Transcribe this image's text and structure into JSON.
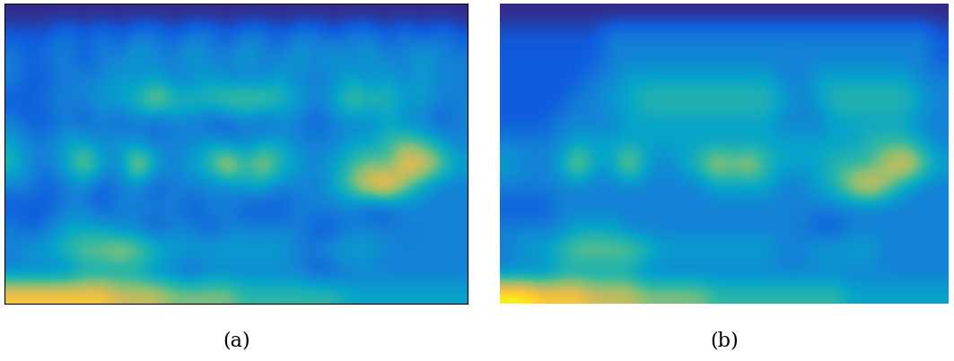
{
  "chart_data": [
    {
      "type": "heatmap",
      "xlabel": "(a)",
      "tick_labels": false,
      "cells": [
        [
          1,
          1,
          1,
          1,
          1,
          1,
          1,
          1,
          1,
          1,
          1,
          1,
          1,
          1,
          1,
          1,
          1,
          1,
          1,
          1,
          1,
          1,
          1,
          1,
          1,
          1
        ],
        [
          2,
          2,
          2,
          3,
          2,
          3,
          2,
          3,
          3,
          2,
          3,
          3,
          2,
          3,
          3,
          2,
          3,
          3,
          2,
          3,
          3,
          2,
          3,
          2,
          3,
          2
        ],
        [
          3,
          2,
          3,
          3,
          2,
          3,
          3,
          4,
          3,
          3,
          4,
          3,
          3,
          4,
          3,
          3,
          4,
          3,
          4,
          3,
          4,
          3,
          3,
          4,
          3,
          3
        ],
        [
          3,
          2,
          2,
          3,
          3,
          3,
          4,
          3,
          4,
          3,
          3,
          4,
          3,
          3,
          3,
          4,
          3,
          3,
          3,
          4,
          3,
          4,
          3,
          4,
          3,
          3
        ],
        [
          2,
          2,
          3,
          3,
          3,
          4,
          4,
          5,
          7,
          5,
          5,
          5,
          6,
          6,
          6,
          5,
          4,
          3,
          4,
          6,
          5,
          5,
          4,
          4,
          3,
          3
        ],
        [
          3,
          2,
          2,
          3,
          2,
          3,
          2,
          3,
          2,
          3,
          3,
          2,
          2,
          3,
          2,
          3,
          3,
          2,
          3,
          3,
          3,
          4,
          3,
          3,
          2,
          3
        ],
        [
          4,
          3,
          3,
          4,
          4,
          3,
          4,
          3,
          3,
          3,
          3,
          4,
          3,
          3,
          4,
          4,
          3,
          3,
          3,
          4,
          4,
          5,
          6,
          5,
          4,
          3
        ],
        [
          5,
          3,
          3,
          4,
          7,
          4,
          3,
          8,
          4,
          3,
          4,
          5,
          8,
          5,
          7,
          5,
          4,
          3,
          4,
          5,
          6,
          5,
          8,
          8,
          6,
          4
        ],
        [
          3,
          3,
          2,
          3,
          3,
          2,
          3,
          3,
          2,
          3,
          3,
          3,
          3,
          4,
          4,
          3,
          3,
          3,
          4,
          6,
          8,
          9,
          6,
          4,
          3,
          3
        ],
        [
          2,
          2,
          2,
          3,
          3,
          2,
          3,
          3,
          3,
          3,
          2,
          3,
          3,
          2,
          2,
          2,
          3,
          3,
          3,
          3,
          2,
          2,
          3,
          3,
          3,
          3
        ],
        [
          3,
          2,
          3,
          4,
          4,
          4,
          3,
          3,
          2,
          3,
          3,
          2,
          3,
          3,
          3,
          3,
          3,
          2,
          2,
          3,
          3,
          3,
          3,
          3,
          3,
          3
        ],
        [
          3,
          4,
          4,
          5,
          6,
          6,
          7,
          6,
          5,
          4,
          4,
          4,
          4,
          4,
          4,
          4,
          3,
          3,
          4,
          4,
          4,
          3,
          3,
          3,
          3,
          3
        ],
        [
          3,
          3,
          3,
          3,
          4,
          4,
          4,
          4,
          3,
          3,
          2,
          3,
          3,
          3,
          3,
          3,
          3,
          2,
          2,
          3,
          3,
          3,
          3,
          3,
          3,
          3
        ],
        [
          8,
          8,
          8,
          8,
          8,
          8,
          7,
          7,
          7,
          6,
          6,
          6,
          6,
          5,
          5,
          5,
          5,
          5,
          5,
          4,
          4,
          4,
          4,
          4,
          4,
          4
        ]
      ]
    },
    {
      "type": "heatmap",
      "xlabel": "(b)",
      "tick_labels": false,
      "cells": [
        [
          1,
          1,
          1,
          1,
          1,
          1,
          1,
          1,
          1,
          1,
          1,
          1,
          1,
          1,
          1,
          1,
          1,
          1,
          1,
          1,
          1,
          1,
          1,
          1,
          1,
          1
        ],
        [
          2,
          2,
          2,
          2,
          2,
          2,
          3,
          3,
          3,
          3,
          3,
          3,
          3,
          3,
          3,
          3,
          3,
          3,
          3,
          3,
          3,
          3,
          3,
          3,
          3,
          2
        ],
        [
          2,
          2,
          2,
          2,
          2,
          2,
          3,
          3,
          3,
          3,
          3,
          3,
          3,
          3,
          3,
          3,
          3,
          3,
          3,
          3,
          3,
          3,
          3,
          3,
          3,
          2
        ],
        [
          2,
          2,
          2,
          2,
          2,
          3,
          3,
          4,
          4,
          4,
          4,
          4,
          4,
          4,
          4,
          4,
          3,
          3,
          4,
          4,
          4,
          4,
          4,
          4,
          3,
          3
        ],
        [
          2,
          2,
          2,
          2,
          3,
          3,
          4,
          4,
          5,
          5,
          5,
          5,
          5,
          5,
          5,
          5,
          4,
          3,
          4,
          5,
          5,
          5,
          5,
          5,
          4,
          3
        ],
        [
          2,
          2,
          2,
          3,
          3,
          3,
          3,
          4,
          4,
          4,
          4,
          4,
          4,
          4,
          4,
          4,
          3,
          3,
          3,
          4,
          4,
          4,
          4,
          4,
          3,
          3
        ],
        [
          3,
          3,
          3,
          3,
          4,
          4,
          4,
          4,
          4,
          4,
          4,
          4,
          4,
          4,
          4,
          4,
          4,
          4,
          4,
          4,
          4,
          5,
          5,
          5,
          4,
          3
        ],
        [
          4,
          3,
          3,
          4,
          7,
          4,
          4,
          7,
          4,
          3,
          4,
          5,
          7,
          6,
          7,
          5,
          4,
          4,
          4,
          5,
          5,
          5,
          7,
          8,
          6,
          4
        ],
        [
          3,
          3,
          3,
          3,
          3,
          3,
          3,
          3,
          3,
          3,
          3,
          3,
          4,
          4,
          4,
          4,
          3,
          3,
          4,
          5,
          7,
          8,
          6,
          4,
          3,
          3
        ],
        [
          2,
          2,
          2,
          3,
          3,
          3,
          3,
          3,
          3,
          3,
          3,
          3,
          3,
          3,
          3,
          3,
          3,
          3,
          3,
          3,
          3,
          3,
          3,
          3,
          3,
          3
        ],
        [
          3,
          3,
          3,
          3,
          4,
          4,
          4,
          3,
          3,
          3,
          3,
          3,
          3,
          3,
          3,
          3,
          3,
          3,
          2,
          2,
          3,
          3,
          3,
          3,
          3,
          3
        ],
        [
          3,
          4,
          4,
          5,
          6,
          6,
          6,
          6,
          5,
          4,
          4,
          4,
          4,
          4,
          4,
          4,
          3,
          3,
          4,
          4,
          4,
          4,
          3,
          3,
          3,
          3
        ],
        [
          3,
          3,
          3,
          4,
          4,
          4,
          4,
          4,
          3,
          3,
          3,
          3,
          3,
          3,
          3,
          3,
          3,
          3,
          3,
          3,
          3,
          3,
          3,
          3,
          3,
          3
        ],
        [
          9,
          9,
          8,
          8,
          8,
          7,
          7,
          7,
          6,
          6,
          6,
          6,
          5,
          5,
          5,
          5,
          5,
          5,
          5,
          5,
          4,
          4,
          4,
          4,
          4,
          4
        ]
      ]
    }
  ]
}
